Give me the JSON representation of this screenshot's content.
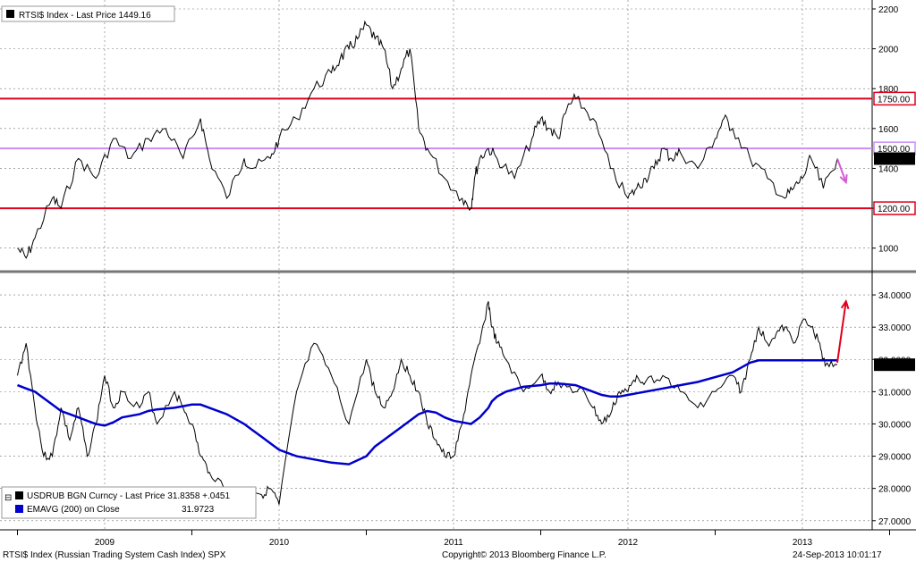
{
  "footer": {
    "source": "RTSI$ Index (Russian Trading System Cash Index) SPX",
    "copyright": "Copyright© 2013 Bloomberg Finance L.P.",
    "timestamp": "24-Sep-2013 10:01:17"
  },
  "x_axis": {
    "labels": [
      "2009",
      "2010",
      "2011",
      "2012",
      "2013"
    ]
  },
  "chart_data": [
    {
      "type": "line",
      "panel": "top",
      "legend": {
        "label": "RTSI$ Index - Last Price 1449.16",
        "color": "#000000"
      },
      "ylim": [
        900,
        2200
      ],
      "yticks": [
        "1000",
        "1200",
        "1400",
        "1600",
        "1800",
        "2000",
        "2200"
      ],
      "x": [
        2009.0,
        2009.05,
        2009.1,
        2009.2,
        2009.25,
        2009.35,
        2009.45,
        2009.55,
        2009.65,
        2009.75,
        2009.85,
        2009.95,
        2010.05,
        2010.1,
        2010.2,
        2010.3,
        2010.35,
        2010.45,
        2010.5,
        2010.6,
        2010.7,
        2010.8,
        2010.85,
        2010.9,
        2010.95,
        2011.0,
        2011.05,
        2011.1,
        2011.15,
        2011.2,
        2011.25,
        2011.3,
        2011.35,
        2011.45,
        2011.55,
        2011.6,
        2011.62,
        2011.65,
        2011.7,
        2011.75,
        2011.85,
        2011.95,
        2012.0,
        2012.05,
        2012.1,
        2012.15,
        2012.2,
        2012.3,
        2012.4,
        2012.5,
        2012.55,
        2012.6,
        2012.65,
        2012.7,
        2012.75,
        2012.8,
        2012.9,
        2013.0,
        2013.05,
        2013.1,
        2013.2,
        2013.3,
        2013.4,
        2013.45,
        2013.5,
        2013.55,
        2013.62,
        2013.7
      ],
      "series": [
        {
          "values": [
            1000,
            950,
            1050,
            1250,
            1200,
            1450,
            1350,
            1550,
            1450,
            1550,
            1600,
            1450,
            1650,
            1450,
            1250,
            1450,
            1400,
            1450,
            1550,
            1650,
            1800,
            1880,
            1950,
            2000,
            2050,
            2120,
            2050,
            2000,
            1800,
            1900,
            2000,
            1600,
            1500,
            1350,
            1250,
            1200,
            1350,
            1450,
            1500,
            1450,
            1350,
            1550,
            1650,
            1600,
            1550,
            1700,
            1750,
            1650,
            1400,
            1250,
            1300,
            1350,
            1400,
            1500,
            1450,
            1480,
            1400,
            1550,
            1650,
            1600,
            1450,
            1350,
            1250,
            1300,
            1350,
            1450,
            1300,
            1449.16
          ],
          "color": "#000000"
        }
      ],
      "reference_lines": [
        {
          "value": 1750,
          "label": "1750.00",
          "color": "#e0001b"
        },
        {
          "value": 1500,
          "label": "1500.00",
          "color": "#c98ef5"
        },
        {
          "value": 1200,
          "label": "1200.00",
          "color": "#e0001b"
        }
      ],
      "last_value_label": "1449.16",
      "annotation_arrow": {
        "from": [
          2013.7,
          1449
        ],
        "to": [
          2013.75,
          1330
        ],
        "color": "#d65ad6"
      }
    },
    {
      "type": "line",
      "panel": "bottom",
      "legend": [
        {
          "label": "USDRUB BGN Curncy - Last Price 31.8358 +.0451",
          "color": "#000000"
        },
        {
          "label": "EMAVG (200) on Close",
          "value": "31.9723",
          "color": "#0000cc"
        }
      ],
      "ylim": [
        26.8,
        34.5
      ],
      "yticks": [
        "27.0000",
        "28.0000",
        "29.0000",
        "30.0000",
        "31.0000",
        "32.0000",
        "33.0000",
        "34.0000"
      ],
      "x": [
        2009.0,
        2009.05,
        2009.1,
        2009.15,
        2009.2,
        2009.25,
        2009.3,
        2009.35,
        2009.4,
        2009.45,
        2009.5,
        2009.55,
        2009.6,
        2009.7,
        2009.75,
        2009.8,
        2009.9,
        2009.95,
        2010.0,
        2010.05,
        2010.1,
        2010.2,
        2010.3,
        2010.35,
        2010.4,
        2010.45,
        2010.5,
        2010.6,
        2010.7,
        2010.8,
        2010.9,
        2011.0,
        2011.05,
        2011.1,
        2011.15,
        2011.2,
        2011.25,
        2011.3,
        2011.35,
        2011.4,
        2011.45,
        2011.5,
        2011.55,
        2011.6,
        2011.65,
        2011.7,
        2011.72,
        2011.75,
        2011.8,
        2011.9,
        2012.0,
        2012.05,
        2012.1,
        2012.2,
        2012.25,
        2012.3,
        2012.35,
        2012.4,
        2012.45,
        2012.5,
        2012.55,
        2012.6,
        2012.7,
        2012.8,
        2012.9,
        2013.0,
        2013.1,
        2013.15,
        2013.2,
        2013.25,
        2013.3,
        2013.35,
        2013.4,
        2013.45,
        2013.5,
        2013.55,
        2013.6,
        2013.63,
        2013.7
      ],
      "series": [
        {
          "name": "USDRUB BGN Curncy - Last Price",
          "color": "#000000",
          "values": [
            31.5,
            32.5,
            30.5,
            29.0,
            29.0,
            30.5,
            29.5,
            30.5,
            29.0,
            30.0,
            31.5,
            30.5,
            31.0,
            30.5,
            31.0,
            30.0,
            31.0,
            30.5,
            30.0,
            29.0,
            28.5,
            28.0,
            27.5,
            28.0,
            27.8,
            28.0,
            27.5,
            31.0,
            32.5,
            31.5,
            30.0,
            32.0,
            31.0,
            30.5,
            31.0,
            32.0,
            31.5,
            31.0,
            30.0,
            29.5,
            29.0,
            29.0,
            30.0,
            31.5,
            32.5,
            33.8,
            33.0,
            32.5,
            32.0,
            31.0,
            31.5,
            31.0,
            31.3,
            31.0,
            31.0,
            30.5,
            30.0,
            30.3,
            31.0,
            31.0,
            31.5,
            31.3,
            31.5,
            31.0,
            30.5,
            31.0,
            31.5,
            31.0,
            32.0,
            33.0,
            32.5,
            32.8,
            33.0,
            32.5,
            33.2,
            33.0,
            32.5,
            31.8,
            31.8358
          ]
        },
        {
          "name": "EMAVG (200) on Close",
          "color": "#0000cc",
          "values": [
            31.2,
            31.1,
            31.0,
            30.8,
            30.6,
            30.4,
            30.3,
            30.2,
            30.1,
            30.0,
            29.95,
            30.05,
            30.2,
            30.3,
            30.4,
            30.45,
            30.5,
            30.55,
            30.6,
            30.6,
            30.5,
            30.3,
            30.0,
            29.8,
            29.6,
            29.4,
            29.2,
            29.0,
            28.9,
            28.8,
            28.75,
            29.0,
            29.3,
            29.5,
            29.7,
            29.9,
            30.1,
            30.3,
            30.4,
            30.35,
            30.2,
            30.1,
            30.05,
            30.0,
            30.2,
            30.5,
            30.7,
            30.85,
            31.0,
            31.15,
            31.2,
            31.25,
            31.25,
            31.2,
            31.1,
            31.0,
            30.9,
            30.85,
            30.85,
            30.9,
            30.95,
            31.0,
            31.1,
            31.2,
            31.3,
            31.45,
            31.6,
            31.75,
            31.9,
            31.97,
            31.97,
            31.97,
            31.97,
            31.97,
            31.97,
            31.97,
            31.97,
            31.97,
            31.9723
          ]
        }
      ],
      "last_value_label": "31.8358",
      "annotation_arrow": {
        "from": [
          2013.7,
          31.9
        ],
        "to": [
          2013.75,
          33.8
        ],
        "color": "#e0001b"
      }
    }
  ]
}
